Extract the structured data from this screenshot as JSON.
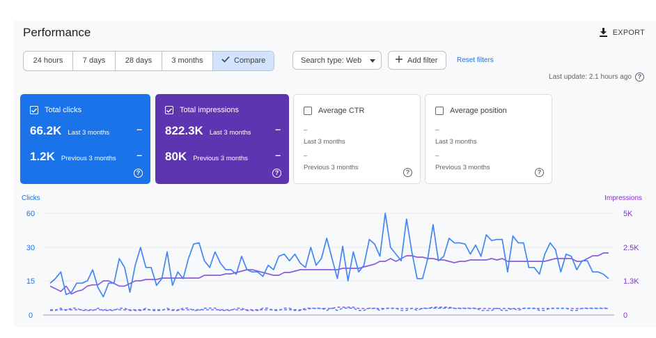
{
  "header": {
    "title": "Performance",
    "export_label": "EXPORT"
  },
  "time_range": {
    "options": [
      {
        "label": "24 hours"
      },
      {
        "label": "7 days"
      },
      {
        "label": "28 days"
      },
      {
        "label": "3 months"
      },
      {
        "label": "Compare",
        "selected": true
      }
    ]
  },
  "filters": {
    "search_type_label": "Search type: Web",
    "add_filter_label": "Add filter",
    "reset_label": "Reset filters"
  },
  "last_update": "Last update: 2.1 hours ago",
  "cards": {
    "clicks": {
      "title": "Total clicks",
      "current": "66.2K",
      "current_label": "Last 3 months",
      "previous": "1.2K",
      "previous_label": "Previous 3 months",
      "dash": "–",
      "color": "#1a73e8"
    },
    "impressions": {
      "title": "Total impressions",
      "current": "822.3K",
      "current_label": "Last 3 months",
      "previous": "80K",
      "previous_label": "Previous 3 months",
      "dash": "–",
      "color": "#5e35b1"
    },
    "ctr": {
      "title": "Average CTR",
      "current": "–",
      "current_label": "Last 3 months",
      "previous": "–",
      "previous_label": "Previous 3 months"
    },
    "position": {
      "title": "Average position",
      "current": "–",
      "current_label": "Last 3 months",
      "previous": "–",
      "previous_label": "Previous 3 months"
    }
  },
  "chart_data": {
    "type": "line",
    "left_axis_label": "Clicks",
    "right_axis_label": "Impressions",
    "left_ticks": [
      "60",
      "30",
      "15",
      "0"
    ],
    "right_ticks": [
      "5K",
      "2.5K",
      "1.3K",
      "0"
    ],
    "left_ylim": [
      0,
      60
    ],
    "right_ylim": [
      0,
      5000
    ],
    "grid": true,
    "series": [
      {
        "color": "#4285f4",
        "style": "solid",
        "axis": "left",
        "values": [
          14,
          16,
          19,
          9,
          10,
          14,
          14,
          15,
          20,
          12,
          8,
          14,
          14,
          25,
          21,
          10,
          22,
          30,
          21,
          21,
          13,
          16,
          28,
          13,
          19,
          16,
          25,
          33,
          34,
          24,
          21,
          28,
          23,
          20,
          20,
          18,
          26,
          20,
          19,
          19,
          17,
          22,
          20,
          26,
          27,
          24,
          27,
          23,
          21,
          30,
          22,
          25,
          38,
          25,
          16,
          31,
          15,
          28,
          19,
          22,
          37,
          33,
          26,
          60,
          30,
          27,
          24,
          55,
          28,
          16,
          16,
          25,
          50,
          24,
          26,
          38,
          34,
          34,
          33,
          27,
          32,
          26,
          41,
          36,
          37,
          37,
          19,
          40,
          34,
          34,
          21,
          21,
          18,
          27,
          34,
          29,
          19,
          27,
          26,
          20,
          24,
          24,
          19,
          19,
          18,
          16
        ]
      },
      {
        "color": "#4285f4",
        "style": "dashed",
        "axis": "left",
        "values": [
          2,
          2,
          3,
          2,
          3,
          3,
          2,
          2,
          2,
          3,
          2,
          2,
          2,
          3,
          3,
          2,
          2,
          2,
          3,
          2,
          2,
          2,
          3,
          2,
          2,
          3,
          3,
          2,
          2,
          3,
          3,
          3,
          2,
          2,
          2,
          3,
          3,
          2,
          2,
          2,
          3,
          3,
          2,
          2,
          3,
          3,
          2,
          2,
          3,
          3,
          3,
          3,
          2,
          3,
          2,
          3,
          3,
          3,
          2,
          2,
          3,
          3,
          2,
          3,
          3,
          3,
          2,
          2,
          3,
          2,
          3,
          3,
          3,
          3,
          3,
          3,
          3,
          3,
          3,
          3,
          3,
          2,
          2,
          2,
          3,
          2,
          2,
          3,
          2,
          3,
          3,
          3,
          2,
          2,
          3,
          3,
          3,
          3,
          2,
          2,
          3,
          3,
          3,
          3,
          3,
          3
        ]
      },
      {
        "color": "#8e5bd9",
        "style": "solid",
        "axis": "right",
        "values": [
          1100,
          1000,
          900,
          1100,
          800,
          900,
          950,
          1100,
          1150,
          1150,
          1300,
          1300,
          1200,
          1100,
          1100,
          1200,
          1300,
          1300,
          1350,
          1350,
          1350,
          1400,
          1400,
          1400,
          1400,
          1400,
          1400,
          1400,
          1400,
          1500,
          1500,
          1500,
          1500,
          1550,
          1550,
          1600,
          1650,
          1700,
          1700,
          1650,
          1600,
          1550,
          1500,
          1500,
          1600,
          1600,
          1650,
          1700,
          1700,
          1700,
          1700,
          1700,
          1700,
          1700,
          1700,
          1750,
          1750,
          1750,
          1750,
          1800,
          1850,
          1900,
          2000,
          2000,
          2100,
          2000,
          2100,
          2200,
          2200,
          2150,
          2150,
          2100,
          2100,
          2050,
          2050,
          2000,
          1950,
          2000,
          2000,
          2050,
          2050,
          2050,
          2050,
          2100,
          2050,
          2100,
          2000,
          2000,
          2000,
          2000,
          2000,
          2000,
          2000,
          2000,
          2050,
          2100,
          2100,
          2100,
          2100,
          2000,
          2000,
          2100,
          2200,
          2200,
          2300,
          2300
        ]
      },
      {
        "color": "#8e5bd9",
        "style": "dashed",
        "axis": "right",
        "values": [
          200,
          200,
          200,
          200,
          200,
          200,
          200,
          200,
          200,
          200,
          200,
          200,
          200,
          200,
          200,
          200,
          200,
          200,
          200,
          200,
          200,
          200,
          200,
          200,
          200,
          200,
          200,
          200,
          200,
          200,
          200,
          200,
          200,
          200,
          200,
          200,
          200,
          200,
          200,
          200,
          200,
          200,
          200,
          200,
          200,
          200,
          200,
          200,
          200,
          250,
          250,
          250,
          250,
          250,
          300,
          300,
          300,
          300,
          250,
          250,
          250,
          250,
          250,
          250,
          250,
          250,
          250,
          250,
          250,
          250,
          250,
          250,
          300,
          300,
          300,
          300,
          250,
          250,
          250,
          250,
          250,
          250,
          250,
          250,
          250,
          250,
          250,
          250,
          250,
          250,
          250,
          250,
          250,
          250,
          250,
          250,
          250,
          250,
          250,
          250,
          250,
          250,
          250,
          250,
          250,
          250
        ]
      }
    ]
  }
}
